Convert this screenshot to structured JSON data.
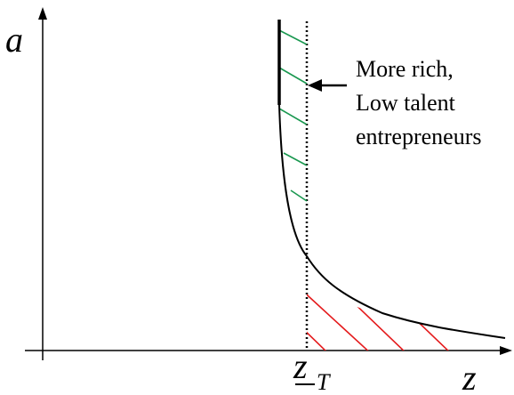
{
  "diagram": {
    "axes": {
      "y_label": "a",
      "x_label": "z",
      "threshold_label": "z",
      "threshold_subscript": "T"
    },
    "annotation": {
      "lines": [
        "More rich,",
        "Low talent",
        "entrepreneurs"
      ]
    },
    "colors": {
      "curve": "#000000",
      "threshold_line": "#000000",
      "upper_hatch": "#1a9850",
      "lower_hatch": "#e41a1c"
    }
  }
}
